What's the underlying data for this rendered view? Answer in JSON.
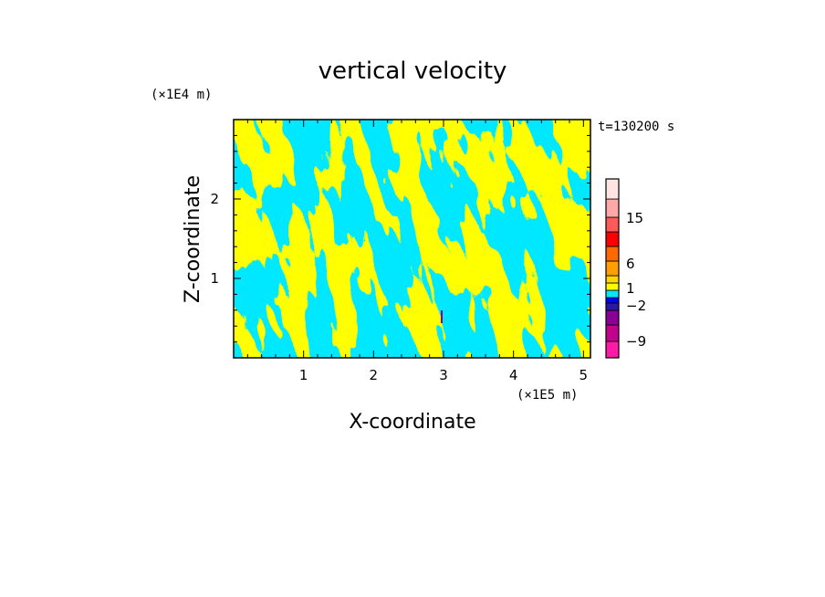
{
  "chart_data": {
    "type": "heatmap",
    "title": "vertical velocity",
    "xlabel": "X-coordinate",
    "ylabel": "Z-coordinate",
    "x_unit_label": "(×1E5 m)",
    "y_unit_label": "(×1E4 m)",
    "time_label": "t=130200 s",
    "xlim": [
      0,
      5.1
    ],
    "ylim": [
      0,
      3.0
    ],
    "x_ticks": [
      1,
      2,
      3,
      4,
      5
    ],
    "y_ticks": [
      1,
      2
    ],
    "x_tick_labels": [
      "1",
      "2",
      "3",
      "4",
      "5"
    ],
    "y_tick_labels": [
      "1",
      "2"
    ],
    "field_colors": {
      "positive": "#ffff00",
      "negative": "#00e8ff"
    },
    "colorbar": {
      "bands": [
        {
          "color": "#ff1aa8"
        },
        {
          "color": "#c4008f"
        },
        {
          "color": "#8a0094"
        },
        {
          "color": "#2a1aa0"
        },
        {
          "color": "#0000ff"
        },
        {
          "color": "#00e8ff"
        },
        {
          "color": "#ffff00"
        },
        {
          "color": "#ffd700"
        },
        {
          "color": "#ff9f00"
        },
        {
          "color": "#ff6a00"
        },
        {
          "color": "#ff0000"
        },
        {
          "color": "#ff5a5a"
        },
        {
          "color": "#ffa8a8"
        },
        {
          "color": "#ffe4e4"
        }
      ],
      "labels": [
        "15",
        "6",
        "1",
        "−2",
        "−9"
      ]
    }
  }
}
